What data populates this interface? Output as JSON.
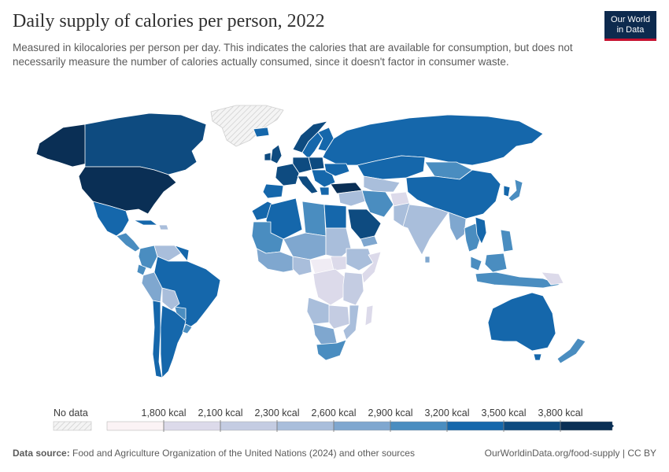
{
  "header": {
    "title": "Daily supply of calories per person, 2022",
    "subtitle": "Measured in kilocalories per person per day. This indicates the calories that are available for consumption, but does not necessarily measure the number of calories actually consumed, since it doesn't factor in consumer waste."
  },
  "logo": {
    "line1": "Our World",
    "line2": "in Data"
  },
  "legend": {
    "no_data_label": "No data",
    "bins": [
      "1,800 kcal",
      "2,100 kcal",
      "2,300 kcal",
      "2,600 kcal",
      "2,900 kcal",
      "3,200 kcal",
      "3,500 kcal",
      "3,800 kcal"
    ],
    "colors": [
      "#fbf3f5",
      "#dcdaea",
      "#c4cce2",
      "#a9bedb",
      "#7fa7cf",
      "#4a8dc0",
      "#1567ab",
      "#0e4b80",
      "#0a2f55"
    ]
  },
  "footer": {
    "source_label": "Data source:",
    "source_text": "Food and Agriculture Organization of the United Nations (2024) and other sources",
    "url": "OurWorldinData.org/food-supply | CC BY"
  }
}
